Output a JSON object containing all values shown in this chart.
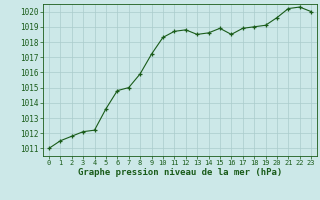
{
  "x": [
    0,
    1,
    2,
    3,
    4,
    5,
    6,
    7,
    8,
    9,
    10,
    11,
    12,
    13,
    14,
    15,
    16,
    17,
    18,
    19,
    20,
    21,
    22,
    23
  ],
  "y": [
    1011.0,
    1011.5,
    1011.8,
    1012.1,
    1012.2,
    1013.6,
    1014.8,
    1015.0,
    1015.9,
    1017.2,
    1018.3,
    1018.7,
    1018.8,
    1018.5,
    1018.6,
    1018.9,
    1018.5,
    1018.9,
    1019.0,
    1019.1,
    1019.6,
    1020.2,
    1020.3,
    1020.0
  ],
  "xlim": [
    -0.5,
    23.5
  ],
  "ylim": [
    1010.5,
    1020.5
  ],
  "yticks": [
    1011,
    1012,
    1013,
    1014,
    1015,
    1016,
    1017,
    1018,
    1019,
    1020
  ],
  "xticks": [
    0,
    1,
    2,
    3,
    4,
    5,
    6,
    7,
    8,
    9,
    10,
    11,
    12,
    13,
    14,
    15,
    16,
    17,
    18,
    19,
    20,
    21,
    22,
    23
  ],
  "line_color": "#1a5c1a",
  "marker": "+",
  "marker_color": "#1a5c1a",
  "bg_color": "#cce8e8",
  "grid_color": "#aacccc",
  "xlabel": "Graphe pression niveau de la mer (hPa)",
  "xlabel_color": "#1a5c1a",
  "tick_color": "#1a5c1a",
  "spine_color": "#aaaaaa",
  "font_family": "monospace"
}
